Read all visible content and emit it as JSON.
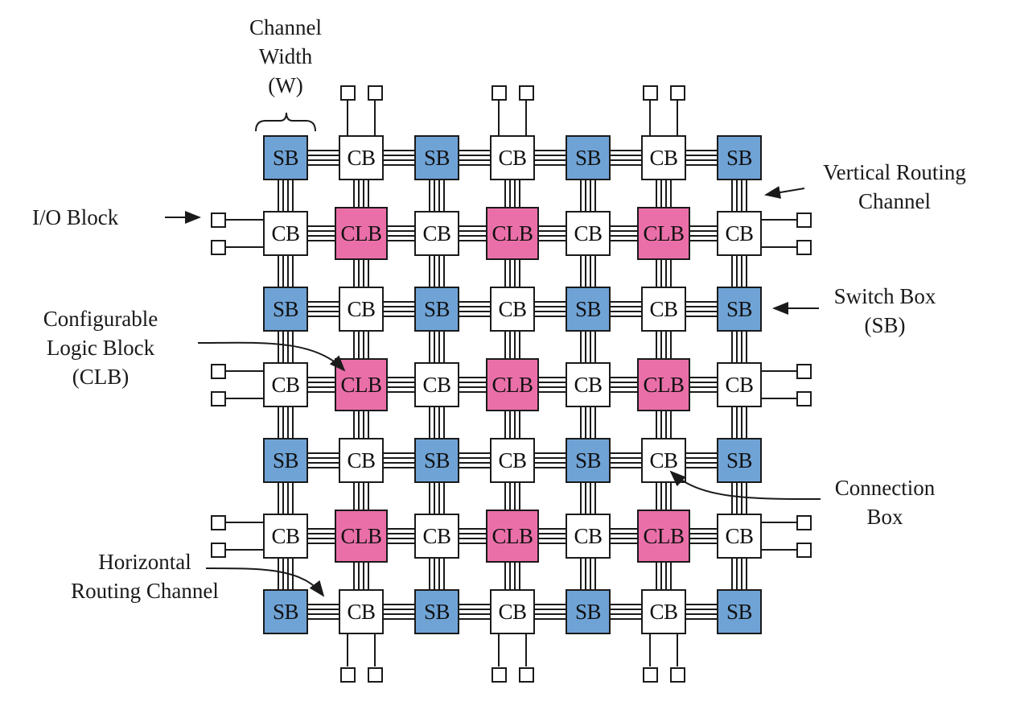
{
  "colors": {
    "switch_box": "#6fa3d6",
    "clb": "#ea6fa8",
    "connection_box": "#ffffff",
    "wire": "#1a1a1a"
  },
  "block_labels": {
    "sb": "SB",
    "cb": "CB",
    "clb": "CLB"
  },
  "annotations": {
    "channel_width": "Channel\nWidth\n(W)",
    "io_block": "I/O Block",
    "vertical_routing_channel": "Vertical Routing\nChannel",
    "switch_box": "Switch Box\n(SB)",
    "configurable_logic_block": "Configurable\nLogic Block\n(CLB)",
    "connection_box": "Connection\nBox",
    "horizontal_routing_channel": "Horizontal\nRouting Channel"
  },
  "icons": [
    "arrow-icon",
    "curly-brace-icon",
    "io-pad-icon"
  ]
}
